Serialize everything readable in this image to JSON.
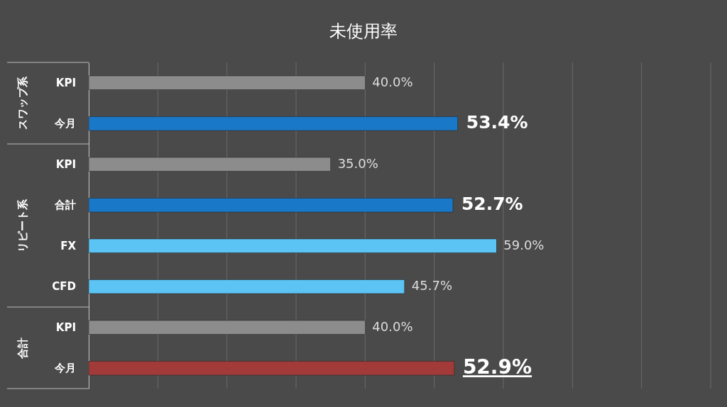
{
  "chart_data": {
    "type": "bar",
    "orientation": "horizontal",
    "title": "未使用率",
    "categories": [
      "KPI",
      "今月",
      "KPI",
      "合計",
      "FX",
      "CFD",
      "KPI",
      "今月"
    ],
    "values": [
      40.0,
      53.4,
      35.0,
      52.7,
      59.0,
      45.7,
      40.0,
      52.9
    ],
    "colors": [
      "#8c8c8c",
      "#1a78c8",
      "#8c8c8c",
      "#1a78c8",
      "#5cc4f5",
      "#5cc4f5",
      "#8c8c8c",
      "#a33a3a"
    ],
    "value_labels": [
      "40.0%",
      "53.4%",
      "35.0%",
      "52.7%",
      "59.0%",
      "45.7%",
      "40.0%",
      "52.9%"
    ],
    "annotations": [
      "スワップ系",
      "リピート系",
      "合計"
    ],
    "xlim": [
      0,
      90
    ],
    "xticks": [
      {
        "value": 0,
        "label": null
      },
      {
        "value": 10,
        "label": null
      },
      {
        "value": 20,
        "label": null
      },
      {
        "value": 30,
        "label": null
      },
      {
        "value": 40,
        "label": null
      },
      {
        "value": 50,
        "label": null
      },
      {
        "value": 60,
        "label": null
      },
      {
        "value": 70,
        "label": null
      },
      {
        "value": 80,
        "label": null
      },
      {
        "value": 90,
        "label": null
      }
    ],
    "grid": "x",
    "tick_labels": "y"
  }
}
